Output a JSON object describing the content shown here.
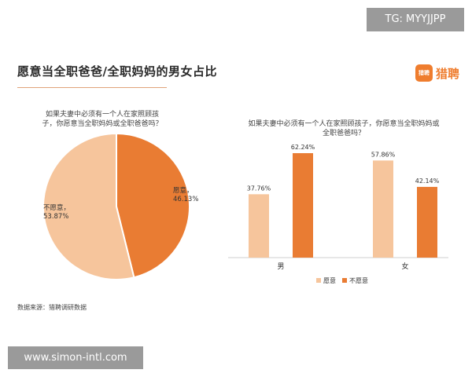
{
  "watermark_top": "TG: MYYJJPP",
  "watermark_bottom": "www.simon-intl.com",
  "title": "愿意当全职爸爸/全职妈妈的男女占比",
  "brand": {
    "name": "猎聘",
    "logo_text": "猎聘",
    "color": "#ef7d2e"
  },
  "source": "数据来源：猎聘调研数据",
  "colors": {
    "willing": "#f6c59c",
    "unwilling": "#e97c33"
  },
  "chart_data": [
    {
      "type": "pie",
      "title": "如果夫妻中必须有一个人在家照顾孩子，你愿意当全职妈妈或全职爸爸吗？",
      "slices": [
        {
          "label": "愿意",
          "value": 46.13,
          "display": "46.13%",
          "color": "#e97c33"
        },
        {
          "label": "不愿意",
          "value": 53.87,
          "display": "53.87%",
          "color": "#f6c59c"
        }
      ]
    },
    {
      "type": "bar",
      "title": "如果夫妻中必须有一个人在家照顾孩子，你愿意当全职妈妈或全职爸爸吗？",
      "categories": [
        "男",
        "女"
      ],
      "ylim": [
        0,
        70
      ],
      "series": [
        {
          "name": "愿意",
          "values": [
            37.76,
            57.86
          ],
          "labels": [
            "37.76%",
            "57.86%"
          ],
          "color": "#f6c59c"
        },
        {
          "name": "不愿意",
          "values": [
            62.24,
            42.14
          ],
          "labels": [
            "62.24%",
            "42.14%"
          ],
          "color": "#e97c33"
        }
      ],
      "legend_position": "bottom"
    }
  ]
}
